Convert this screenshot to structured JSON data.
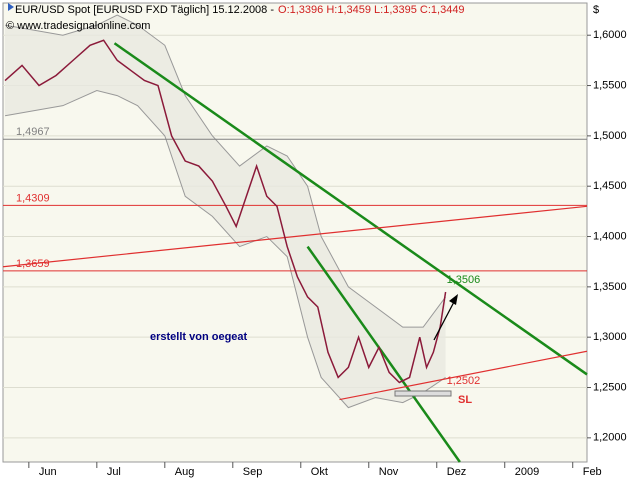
{
  "chart_data": {
    "type": "line",
    "title": "EUR/USD Spot [EURUSD FXD  Täglich] 15.12.2008 -",
    "quote": "O:1,3396 H:1,3459 L:1,3395 C:1,3449",
    "subtitle": "© www.tradesignalonline.com",
    "y_label": "$",
    "annotation": "erstellt von oegeat",
    "stop_label": "SL",
    "xlim": [
      5.62,
      14.21
    ],
    "xticks": [
      {
        "value": 6,
        "label": "Jun"
      },
      {
        "value": 7,
        "label": "Jul"
      },
      {
        "value": 8,
        "label": "Aug"
      },
      {
        "value": 9,
        "label": "Sep"
      },
      {
        "value": 10,
        "label": "Okt"
      },
      {
        "value": 11,
        "label": "Nov"
      },
      {
        "value": 12,
        "label": "Dez"
      },
      {
        "value": 13,
        "label": "2009"
      },
      {
        "value": 14,
        "label": "Feb"
      }
    ],
    "ylim": [
      1.176,
      1.632
    ],
    "yticks": [
      {
        "value": 1.2,
        "label": "1,2000"
      },
      {
        "value": 1.25,
        "label": "1,2500"
      },
      {
        "value": 1.3,
        "label": "1,3000"
      },
      {
        "value": 1.35,
        "label": "1,3500"
      },
      {
        "value": 1.4,
        "label": "1,4000"
      },
      {
        "value": 1.45,
        "label": "1,4500"
      },
      {
        "value": 1.5,
        "label": "1,5000"
      },
      {
        "value": 1.55,
        "label": "1,5500"
      },
      {
        "value": 1.6,
        "label": "1,6000"
      }
    ],
    "grid": true,
    "series": [
      {
        "color": "#8b1a3a",
        "x": [
          5.65,
          5.9,
          6.15,
          6.4,
          6.65,
          6.9,
          7.1,
          7.3,
          7.5,
          7.7,
          7.9,
          8.1,
          8.3,
          8.5,
          8.7,
          8.9,
          9.05,
          9.2,
          9.35,
          9.5,
          9.65,
          9.8,
          9.95,
          10.1,
          10.25,
          10.4,
          10.55,
          10.7,
          10.85,
          11.0,
          11.15,
          11.3,
          11.45,
          11.6,
          11.75,
          11.85,
          11.95,
          12.05,
          12.13
        ],
        "values": [
          1.555,
          1.57,
          1.55,
          1.56,
          1.575,
          1.59,
          1.595,
          1.575,
          1.565,
          1.555,
          1.55,
          1.5,
          1.475,
          1.47,
          1.455,
          1.43,
          1.41,
          1.44,
          1.47,
          1.44,
          1.43,
          1.39,
          1.36,
          1.34,
          1.33,
          1.285,
          1.26,
          1.27,
          1.3,
          1.27,
          1.29,
          1.265,
          1.255,
          1.26,
          1.3,
          1.27,
          1.285,
          1.31,
          1.3449
        ]
      }
    ],
    "band": {
      "color": "#e8e8e0",
      "x": [
        5.65,
        6.5,
        7.0,
        7.3,
        7.6,
        8.0,
        8.3,
        8.7,
        9.1,
        9.5,
        9.8,
        10.1,
        10.3,
        10.7,
        11.1,
        11.5,
        11.8,
        12.13
      ],
      "upper": [
        1.61,
        1.6,
        1.61,
        1.62,
        1.61,
        1.59,
        1.54,
        1.5,
        1.47,
        1.49,
        1.48,
        1.45,
        1.4,
        1.35,
        1.33,
        1.31,
        1.31,
        1.34
      ],
      "lower": [
        1.52,
        1.53,
        1.545,
        1.54,
        1.53,
        1.5,
        1.44,
        1.42,
        1.39,
        1.4,
        1.38,
        1.3,
        1.26,
        1.23,
        1.24,
        1.235,
        1.245,
        1.26
      ]
    },
    "trendlines": [
      {
        "color": "#1a8a1a",
        "x": [
          7.26,
          14.21
        ],
        "values": [
          1.592,
          1.263
        ]
      },
      {
        "color": "#1a8a1a",
        "x": [
          10.1,
          12.34
        ],
        "values": [
          1.39,
          1.176
        ]
      },
      {
        "color": "#e03030",
        "x": [
          5.62,
          14.21
        ],
        "values": [
          1.37,
          1.43
        ]
      },
      {
        "color": "#e03030",
        "x": [
          10.57,
          14.21
        ],
        "values": [
          1.238,
          1.286
        ]
      }
    ],
    "levels": [
      {
        "value": 1.4967,
        "label": "1,4967",
        "color": "#808080"
      },
      {
        "value": 1.4309,
        "label": "1,4309",
        "color": "#e03030"
      },
      {
        "value": 1.3659,
        "label": "1,3659",
        "color": "#e03030"
      }
    ],
    "marked_levels": [
      {
        "value": 1.3506,
        "label": "1,3506",
        "color": "#1a8a1a"
      },
      {
        "value": 1.2502,
        "label": "1,2502",
        "color": "#e03030"
      }
    ]
  }
}
